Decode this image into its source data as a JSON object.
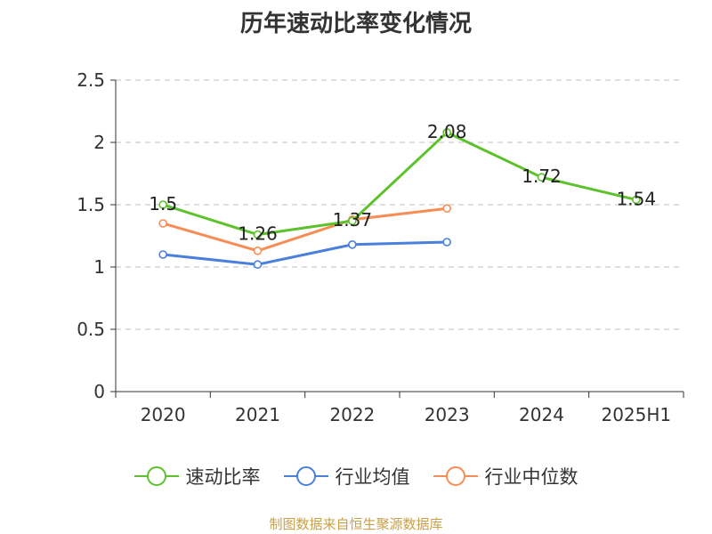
{
  "title": "历年速动比率变化情况",
  "source": "制图数据来自恒生聚源数据库",
  "chart_data": {
    "type": "line",
    "title": "历年速动比率变化情况",
    "categories": [
      "2020",
      "2021",
      "2022",
      "2023",
      "2024",
      "2025H1"
    ],
    "ylim": [
      0,
      2.5
    ],
    "yticks": [
      "0",
      "0.5",
      "1",
      "1.5",
      "2",
      "2.5"
    ],
    "grid": true,
    "legend_position": "bottom",
    "series": [
      {
        "name": "速动比率",
        "color": "#5cc12b",
        "values": [
          1.5,
          1.26,
          1.37,
          2.08,
          1.72,
          1.54
        ],
        "labels": [
          "1.5",
          "1.26",
          "1.37",
          "2.08",
          "1.72",
          "1.54"
        ]
      },
      {
        "name": "行业均值",
        "color": "#4a7fdc",
        "values": [
          1.1,
          1.02,
          1.18,
          1.2,
          null,
          null
        ]
      },
      {
        "name": "行业中位数",
        "color": "#f78d54",
        "values": [
          1.35,
          1.13,
          1.38,
          1.47,
          null,
          null
        ]
      }
    ]
  }
}
